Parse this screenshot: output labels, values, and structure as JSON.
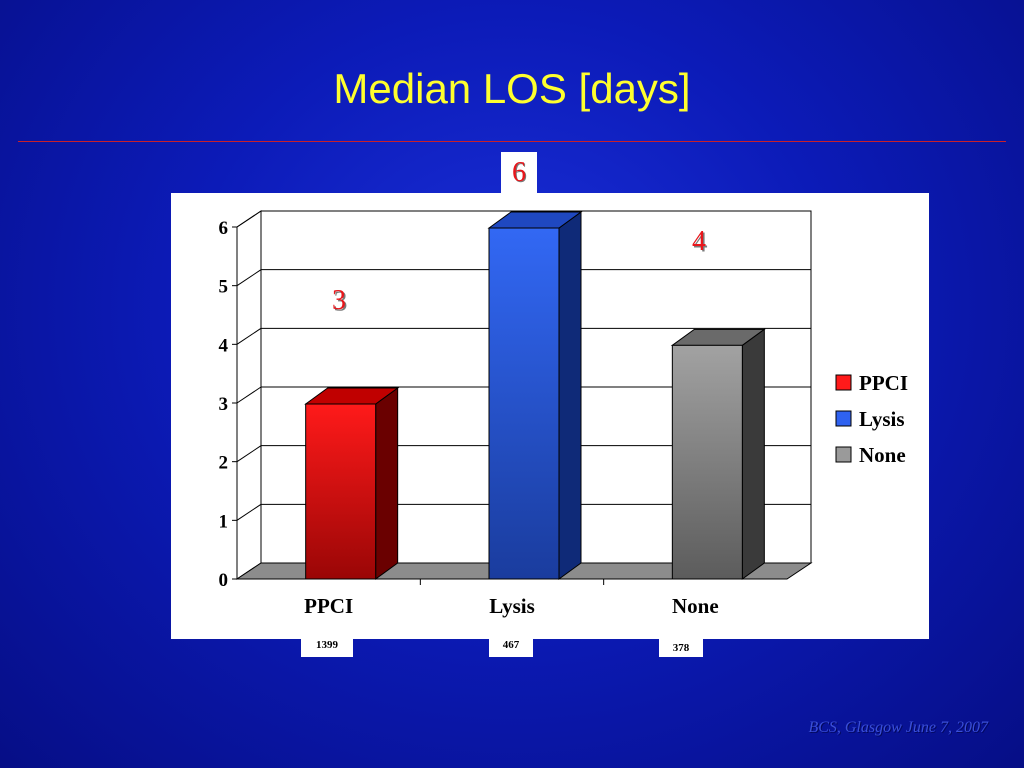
{
  "slide": {
    "title": "Median LOS [days]",
    "footer": "BCS, Glasgow June 7, 2007"
  },
  "colors": {
    "title": "#ffff2e",
    "value_label": "#e8161b",
    "ppci": "#ff1a1a",
    "lysis": "#2f62f0",
    "none": "#9a9a9a"
  },
  "chart_data": {
    "type": "bar",
    "title": "Median LOS [days]",
    "categories": [
      "PPCI",
      "Lysis",
      "None"
    ],
    "values": [
      3,
      6,
      4
    ],
    "value_labels": [
      "3",
      "6",
      "4"
    ],
    "sample_sizes": [
      "1399",
      "467",
      "378"
    ],
    "xlabel": "",
    "ylabel": "",
    "ylim": [
      0,
      6
    ],
    "yticks": [
      "0",
      "1",
      "2",
      "3",
      "4",
      "5",
      "6"
    ],
    "grid": true,
    "legend": {
      "position": "right",
      "entries": [
        "PPCI",
        "Lysis",
        "None"
      ]
    }
  }
}
